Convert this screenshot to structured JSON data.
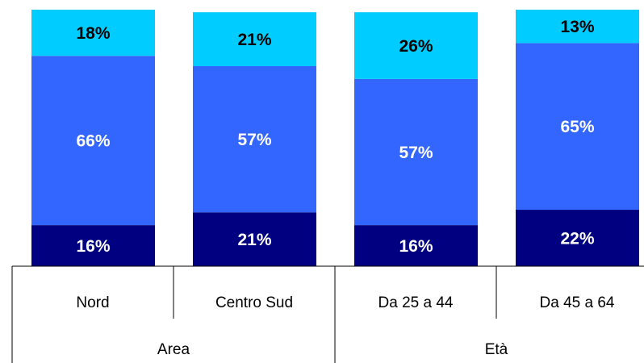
{
  "chart_data": {
    "type": "stacked_bar",
    "categories": [
      "Nord",
      "Centro Sud",
      "Da 25 a 44",
      "Da 45 a 64"
    ],
    "groups": [
      {
        "name": "Area",
        "count": 2
      },
      {
        "name": "Età",
        "count": 2
      }
    ],
    "series": [
      {
        "color": "#000080",
        "label_color": "#ffffff",
        "values": [
          16,
          21,
          16,
          22
        ],
        "value_labels": [
          "16%",
          "21%",
          "16%",
          "22%"
        ]
      },
      {
        "color": "#3366ff",
        "label_color": "#ffffff",
        "values": [
          66,
          57,
          57,
          65
        ],
        "value_labels": [
          "66%",
          "57%",
          "57%",
          "65%"
        ]
      },
      {
        "color": "#00ccff",
        "label_color": "#000000",
        "values": [
          18,
          21,
          26,
          13
        ],
        "value_labels": [
          "18%",
          "21%",
          "26%",
          "13%"
        ]
      }
    ],
    "ylim": [
      0,
      100
    ]
  }
}
